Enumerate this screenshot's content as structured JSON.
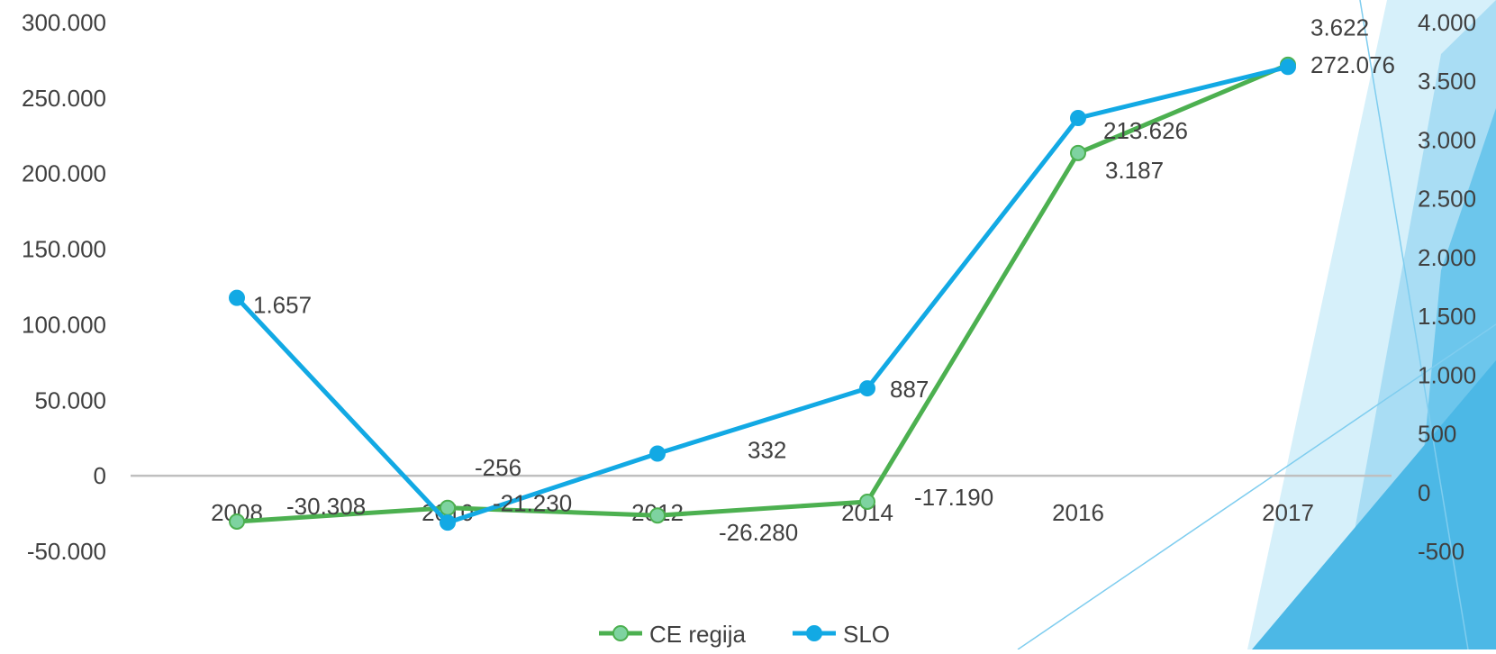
{
  "chart_data": {
    "type": "line",
    "categories": [
      "2008",
      "2010",
      "2012",
      "2014",
      "2016",
      "2017"
    ],
    "series": [
      {
        "name": "CE regija",
        "axis": "left",
        "values": [
          -30308,
          -21230,
          -26280,
          -17190,
          213626,
          272076
        ],
        "labels": [
          "-30.308",
          "-21.230",
          "-26.280",
          "-17.190",
          "213.626",
          "272.076"
        ],
        "color": "#4CB050",
        "marker_fill": "#7ED3A0"
      },
      {
        "name": "SLO",
        "axis": "right",
        "values": [
          1657,
          -256,
          332,
          887,
          3187,
          3622
        ],
        "labels": [
          "1.657",
          "-256",
          "332",
          "887",
          "3.187",
          "3.622"
        ],
        "color": "#12A9E4",
        "marker_fill": "#12A9E4"
      }
    ],
    "left_axis": {
      "ylim": [
        -50000,
        300000
      ],
      "ticks": [
        -50000,
        0,
        50000,
        100000,
        150000,
        200000,
        250000,
        300000
      ],
      "tick_labels": [
        "-50.000",
        "0",
        "50.000",
        "100.000",
        "150.000",
        "200.000",
        "250.000",
        "300.000"
      ]
    },
    "right_axis": {
      "ylim": [
        -500,
        4000
      ],
      "ticks": [
        -500,
        0,
        500,
        1000,
        1500,
        2000,
        2500,
        3000,
        3500,
        4000
      ],
      "tick_labels": [
        "-500",
        "0",
        "500",
        "1.000",
        "1.500",
        "2.000",
        "2.500",
        "3.000",
        "3.500",
        "4.000"
      ]
    },
    "legend": {
      "placement": "bottom-center",
      "entries": [
        "CE regija",
        "SLO"
      ]
    },
    "grid": false,
    "zero_line_color": "#BFBFBF"
  },
  "decoration": {
    "accent_colors": [
      "#C7EAF8",
      "#8FD3F1",
      "#3FB5E4",
      "#12A9E4"
    ]
  }
}
